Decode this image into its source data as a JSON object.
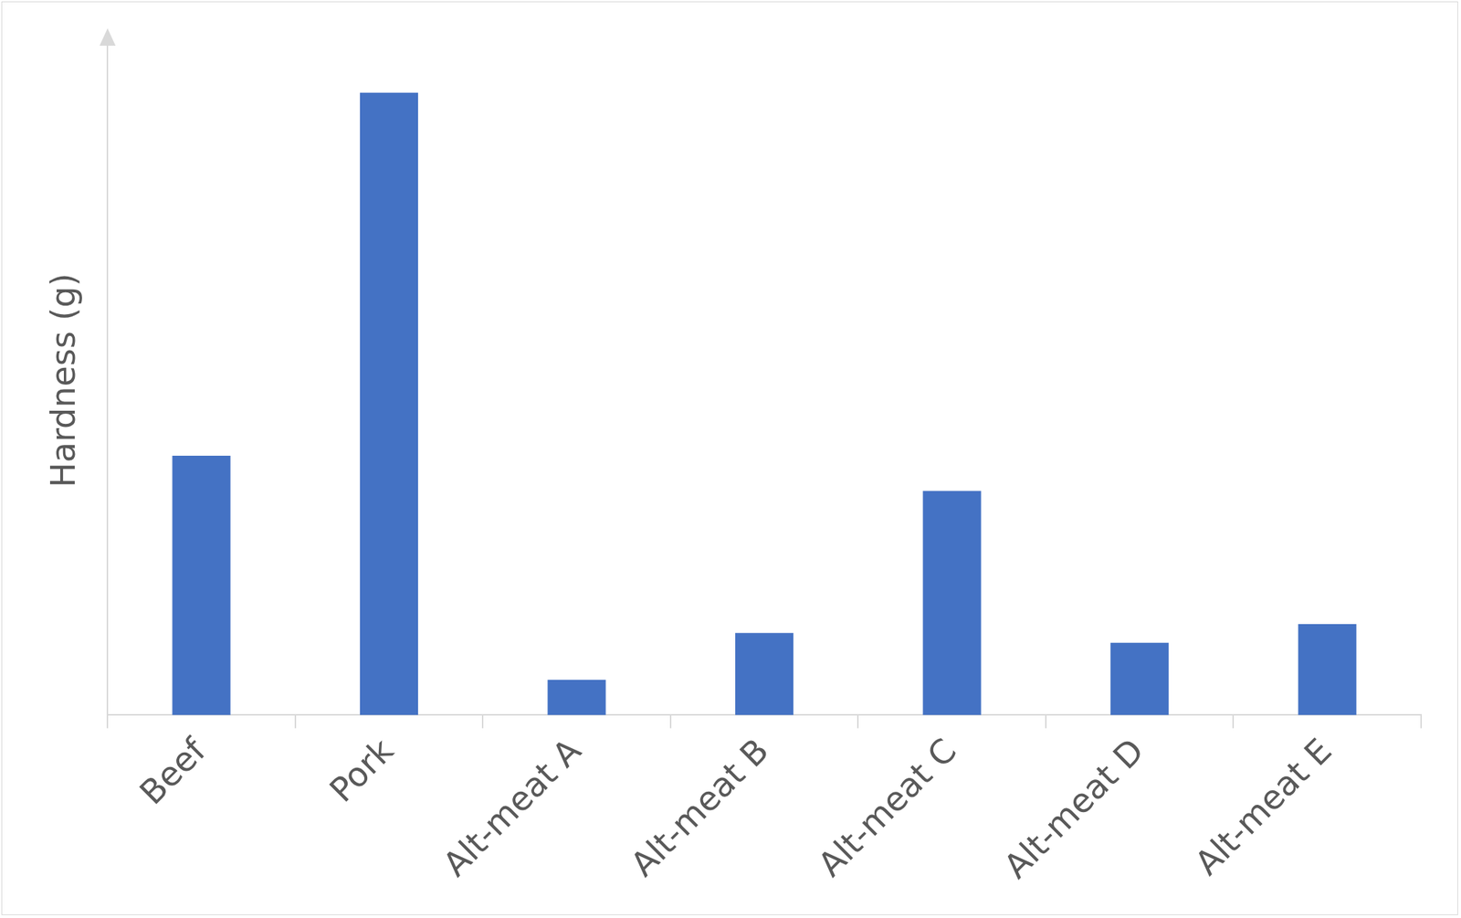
{
  "chart_data": {
    "type": "bar",
    "y_label": "Hardness (g)",
    "categories": [
      "Beef",
      "Pork",
      "Alt-meat A",
      "Alt-meat B",
      "Alt-meat C",
      "Alt-meat D",
      "Alt-meat E"
    ],
    "values": [
      265,
      636,
      36,
      84,
      229,
      74,
      93
    ],
    "color": "#4472c4",
    "ylim": [
      0,
      684
    ],
    "grid": false,
    "tick_labels": "x"
  }
}
